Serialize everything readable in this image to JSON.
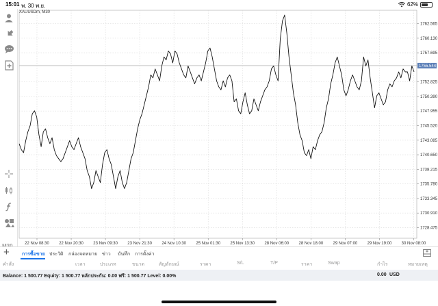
{
  "status_bar": {
    "time": "15:01",
    "date": "พ. 30 พ.ย.",
    "battery": "62%",
    "battery_level": 0.62
  },
  "chart": {
    "title": "XAUUSDm, M30",
    "timeframe": "M30",
    "current_price": "1755.544",
    "colors": {
      "line": "#111111",
      "grid": "#d9d9d9",
      "price_line": "#b5b5b5",
      "price_badge": "#5b7fb8"
    }
  },
  "toolbar": {
    "icons": [
      "account-icon",
      "trade-icon",
      "chat-icon",
      "new-order-icon",
      "crosshair-icon",
      "indicators-icon",
      "function-icon",
      "objects-icon"
    ]
  },
  "tabs": [
    "การซื้อขาย",
    "ประวัติ",
    "กล่องจดหมาย",
    "ข่าว",
    "บันทึก",
    "การตั้งค่า"
  ],
  "columns": [
    "คำสั่ง",
    "เวลา",
    "ประเภท",
    "ขนาด",
    "สัญลักษณ์",
    "ราคา",
    "S/L",
    "T/P",
    "ราคา",
    "Swap",
    "กำไร",
    "หมายเหตุ"
  ],
  "balance": {
    "text": "Balance: 1 500.77 Equity: 1 500.77 หลักประกัน: 0.00 ฟรี: 1 500.77 Level: 0.00%",
    "profit": "0.00",
    "currency": "USD"
  },
  "chart_data": {
    "type": "line",
    "series": [
      {
        "values": [
          1742.5,
          1741.5,
          1741,
          1743,
          1744.5,
          1745.5,
          1747.5,
          1748,
          1747,
          1744,
          1742,
          1744.5,
          1745,
          1743.5,
          1742.5,
          1743.5,
          1741.5,
          1740.5,
          1740,
          1739.5,
          1740,
          1741,
          1742,
          1743,
          1742,
          1741.5,
          1742.5,
          1743.5,
          1742,
          1741,
          1740,
          1738,
          1737,
          1735,
          1736,
          1738,
          1737,
          1736,
          1739,
          1741,
          1741.5,
          1740,
          1739,
          1737,
          1735,
          1737,
          1738,
          1736,
          1735,
          1736,
          1738,
          1740,
          1741,
          1743,
          1745,
          1746.5,
          1747.5,
          1749,
          1750.5,
          1752,
          1754,
          1753.5,
          1755,
          1754,
          1753,
          1755.5,
          1757,
          1756.5,
          1758,
          1757.5,
          1756,
          1758,
          1757.5,
          1756,
          1755,
          1754,
          1753.5,
          1755.5,
          1754.5,
          1753.5,
          1752.5,
          1753.5,
          1754,
          1753,
          1754.5,
          1756,
          1758,
          1758.5,
          1757,
          1755,
          1753,
          1752,
          1751.5,
          1753,
          1752,
          1753.5,
          1754,
          1753,
          1749.5,
          1750,
          1748,
          1747.5,
          1749.5,
          1751,
          1749,
          1747.5,
          1748,
          1750,
          1749,
          1748,
          1749.5,
          1750.5,
          1751.5,
          1752,
          1753,
          1755,
          1755.5,
          1754,
          1753,
          1760,
          1763,
          1764,
          1761,
          1757,
          1754,
          1751,
          1749,
          1746,
          1744,
          1743,
          1741,
          1740.5,
          1741.5,
          1740,
          1742,
          1741.5,
          1743,
          1744,
          1744.5,
          1746,
          1748.5,
          1750,
          1752.5,
          1754,
          1756,
          1757,
          1755.5,
          1754,
          1751.5,
          1750.5,
          1751.5,
          1753,
          1754,
          1753,
          1752,
          1751.5,
          1753,
          1757,
          1755.5,
          1756.5,
          1753.5,
          1751,
          1748.5,
          1750.5,
          1751,
          1750,
          1749,
          1749.5,
          1751.5,
          1752.5,
          1752,
          1753,
          1753.5,
          1754.5,
          1753.5,
          1755,
          1754.5,
          1754.5,
          1753,
          1755.5,
          1754.5
        ],
        "color": "#111111"
      }
    ],
    "ylim": [
      1726.7,
      1764.8
    ],
    "y_ticks": [
      "1762.565",
      "1760.130",
      "1757.695",
      "1752.825",
      "1750.390",
      "1747.955",
      "1745.520",
      "1743.085",
      "1740.650",
      "1738.215",
      "1735.780",
      "1733.345",
      "1730.910",
      "1728.475"
    ],
    "y_tick_values": [
      1762.565,
      1760.13,
      1757.695,
      1752.825,
      1750.39,
      1747.955,
      1745.52,
      1743.085,
      1740.65,
      1738.215,
      1735.78,
      1733.345,
      1730.91,
      1728.475
    ],
    "current_price_value": 1755.544,
    "x_ticks": [
      "22 Nov 08:30",
      "22 Nov 20:30",
      "23 Nov 09:30",
      "23 Nov 21:30",
      "24 Nov 10:30",
      "25 Nov 01:30",
      "25 Nov 13:30",
      "28 Nov 06:00",
      "28 Nov 18:00",
      "29 Nov 07:00",
      "29 Nov 19:00",
      "30 Nov 08:00"
    ],
    "grid": true
  }
}
